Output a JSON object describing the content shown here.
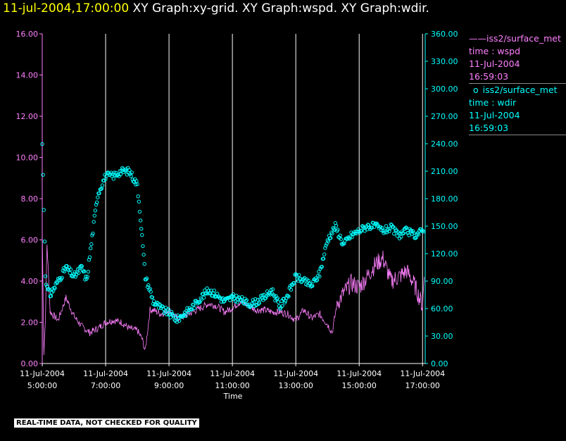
{
  "header": {
    "timestamp": "11-jul-2004,17:00:00",
    "graphs": "XY Graph:xy-grid.  XY Graph:wspd.  XY Graph:wdir."
  },
  "colors": {
    "wspd": "#ff80ff",
    "wdir": "#00ffff",
    "grid": "#ffffff",
    "background": "#000000",
    "timestamp": "#ffff00"
  },
  "legend": [
    {
      "marker": "——",
      "name": "iss2/surface_met",
      "var": "time : wspd",
      "date": "11-Jul-2004",
      "time": "16:59:03"
    },
    {
      "marker": "o",
      "name": "iss2/surface_met",
      "var": "time : wdir",
      "date": "11-Jul-2004",
      "time": "16:59:03"
    }
  ],
  "banner": "REAL-TIME DATA, NOT CHECKED FOR QUALITY",
  "chart_data": {
    "type": "line",
    "xlabel": "Time",
    "x_range": [
      "2004-07-11 05:00",
      "2004-07-11 17:05"
    ],
    "x_ticks": [
      {
        "date": "11-Jul-2004",
        "time": "5:00:00"
      },
      {
        "date": "11-Jul-2004",
        "time": "7:00:00"
      },
      {
        "date": "11-Jul-2004",
        "time": "9:00:00"
      },
      {
        "date": "11-Jul-2004",
        "time": "11:00:00"
      },
      {
        "date": "11-Jul-2004",
        "time": "13:00:00"
      },
      {
        "date": "11-Jul-2004",
        "time": "15:00:00"
      },
      {
        "date": "11-Jul-2004",
        "time": "17:00:00"
      }
    ],
    "vertical_grid_hours": [
      7,
      9,
      11,
      13,
      15,
      17
    ],
    "y_left": {
      "range": [
        0,
        16
      ],
      "ticks": [
        "0.00",
        "2.00",
        "4.00",
        "6.00",
        "8.00",
        "10.00",
        "12.00",
        "14.00",
        "16.00"
      ]
    },
    "y_right": {
      "range": [
        0,
        360
      ],
      "ticks": [
        "0.00",
        "30.00",
        "60.00",
        "90.00",
        "120.00",
        "150.00",
        "180.00",
        "210.00",
        "240.00",
        "270.00",
        "300.00",
        "330.00",
        "360.00"
      ]
    },
    "series": [
      {
        "name": "wspd",
        "axis": "left",
        "style": "line",
        "x": [
          5.0,
          5.05,
          5.1,
          5.15,
          5.25,
          5.5,
          5.75,
          6.0,
          6.25,
          6.5,
          6.75,
          7.0,
          7.25,
          7.5,
          7.75,
          8.0,
          8.15,
          8.25,
          8.4,
          8.5,
          8.75,
          9.0,
          9.25,
          9.5,
          9.75,
          10.0,
          10.25,
          10.5,
          10.75,
          11.0,
          11.25,
          11.5,
          11.75,
          12.0,
          12.25,
          12.5,
          12.75,
          13.0,
          13.25,
          13.5,
          13.75,
          14.0,
          14.15,
          14.3,
          14.5,
          14.75,
          15.0,
          15.25,
          15.5,
          15.75,
          16.0,
          16.25,
          16.5,
          16.75,
          17.0,
          17.05
        ],
        "y": [
          6.5,
          0.5,
          2.2,
          5.8,
          2.5,
          2.1,
          3.2,
          2.3,
          1.8,
          1.5,
          1.7,
          2.0,
          2.1,
          2.0,
          1.7,
          1.6,
          1.2,
          0.6,
          2.6,
          2.6,
          2.4,
          2.6,
          2.2,
          2.3,
          2.5,
          2.7,
          2.9,
          2.8,
          2.5,
          2.7,
          3.0,
          2.8,
          2.6,
          2.6,
          2.5,
          2.5,
          2.4,
          2.1,
          2.6,
          2.2,
          2.4,
          1.9,
          1.5,
          2.9,
          3.4,
          3.9,
          3.7,
          4.2,
          4.8,
          5.1,
          4.0,
          4.2,
          4.5,
          3.8,
          2.8,
          4.2
        ]
      },
      {
        "name": "wdir",
        "axis": "right",
        "style": "circles",
        "x": [
          5.0,
          5.05,
          5.1,
          5.15,
          5.25,
          5.5,
          5.75,
          6.0,
          6.25,
          6.4,
          6.6,
          6.75,
          7.0,
          7.25,
          7.5,
          7.75,
          8.0,
          8.1,
          8.25,
          8.4,
          8.5,
          8.75,
          9.0,
          9.25,
          9.5,
          9.75,
          10.0,
          10.25,
          10.5,
          10.75,
          11.0,
          11.25,
          11.5,
          11.75,
          12.0,
          12.25,
          12.5,
          12.75,
          13.0,
          13.25,
          13.5,
          13.75,
          14.0,
          14.25,
          14.5,
          14.75,
          15.0,
          15.25,
          15.5,
          15.75,
          16.0,
          16.25,
          16.5,
          16.75,
          17.0,
          17.05
        ],
        "y": [
          240,
          170,
          98,
          82,
          75,
          90,
          105,
          95,
          105,
          90,
          145,
          185,
          205,
          205,
          210,
          210,
          195,
          160,
          95,
          80,
          68,
          60,
          55,
          48,
          55,
          62,
          72,
          80,
          75,
          68,
          72,
          70,
          65,
          67,
          72,
          80,
          62,
          75,
          95,
          90,
          85,
          98,
          135,
          150,
          130,
          140,
          145,
          150,
          150,
          145,
          148,
          140,
          145,
          140,
          145,
          150
        ]
      }
    ]
  }
}
